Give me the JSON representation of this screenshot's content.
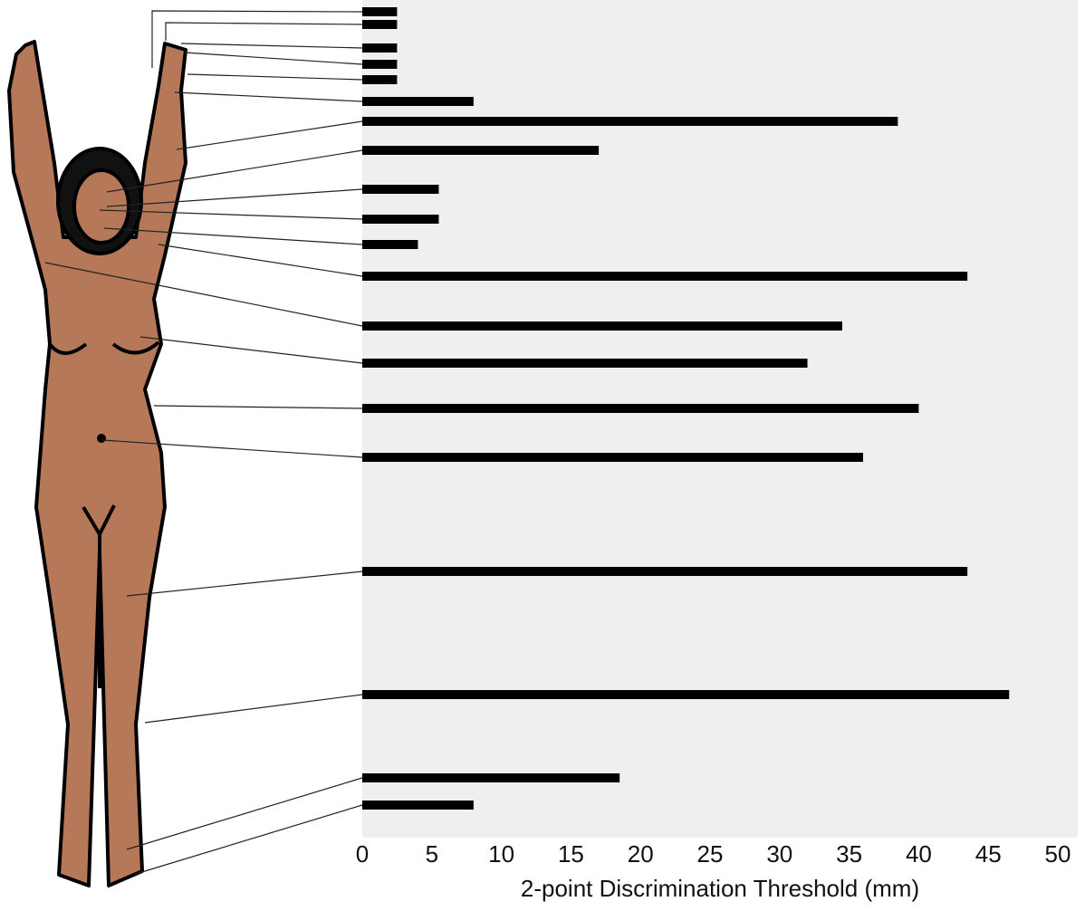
{
  "chart_data": {
    "type": "bar",
    "orientation": "horizontal",
    "x_label": "2-point Discrimination Threshold (mm)",
    "categories": [
      null,
      null,
      null,
      null,
      null,
      null,
      null,
      null,
      null,
      null,
      null,
      null,
      null,
      null,
      null,
      null,
      null,
      null,
      null,
      null
    ],
    "values": [
      2.5,
      2.5,
      2.5,
      2.5,
      2.5,
      8,
      38.5,
      17,
      5.5,
      5.5,
      4,
      43.5,
      34.5,
      32,
      40,
      36,
      43.5,
      46.5,
      18.5,
      8
    ],
    "color": "#000000",
    "xlim": [
      0,
      50
    ],
    "xticks": [
      0,
      5,
      10,
      15,
      20,
      25,
      30,
      35,
      40,
      45,
      50
    ],
    "grid": false
  }
}
